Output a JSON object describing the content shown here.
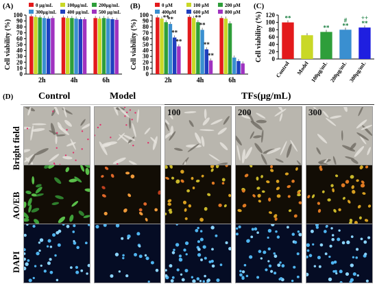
{
  "panels": {
    "a": "(A)",
    "b": "(B)",
    "c": "(C)",
    "d": "(D)"
  },
  "chart_data": [
    {
      "type": "bar",
      "panel": "(A)",
      "ylabel": "Cell viability (%)",
      "ylim": [
        0,
        100
      ],
      "yticks": [
        0,
        10,
        20,
        30,
        40,
        50,
        60,
        70,
        80,
        90,
        100
      ],
      "categories": [
        "2h",
        "4h",
        "6h"
      ],
      "legend": "top",
      "series": [
        {
          "name": "0 μg/mL",
          "color": "#e31a1c",
          "values": [
            98,
            96,
            95
          ]
        },
        {
          "name": "100μg/mL",
          "color": "#c9d827",
          "values": [
            97,
            95,
            94
          ]
        },
        {
          "name": "200μg/mL",
          "color": "#2e9e3a",
          "values": [
            96,
            95,
            95
          ]
        },
        {
          "name": "300μg/mL",
          "color": "#3a8fd0",
          "values": [
            95,
            94,
            94
          ]
        },
        {
          "name": "400 μg/mL",
          "color": "#1f3fbf",
          "values": [
            94,
            93,
            93
          ]
        },
        {
          "name": "500 μg/mL",
          "color": "#a033c0",
          "values": [
            95,
            93,
            92
          ]
        }
      ],
      "annotations": []
    },
    {
      "type": "bar",
      "panel": "(B)",
      "ylabel": "Cell viability (%)",
      "ylim": [
        0,
        100
      ],
      "yticks": [
        0,
        10,
        20,
        30,
        40,
        50,
        60,
        70,
        80,
        90,
        100
      ],
      "categories": [
        "2h",
        "4h",
        "6h"
      ],
      "legend": "top",
      "series": [
        {
          "name": "0   μM",
          "color": "#e31a1c",
          "values": [
            96,
            97,
            95
          ]
        },
        {
          "name": "100  μM",
          "color": "#c9d827",
          "values": [
            94,
            95,
            94
          ]
        },
        {
          "name": "200  μM",
          "color": "#2e9e3a",
          "values": [
            88,
            88,
            86
          ]
        },
        {
          "name": "400μM",
          "color": "#3a8fd0",
          "values": [
            85,
            75,
            28
          ]
        },
        {
          "name": "600  μM",
          "color": "#1f3fbf",
          "values": [
            62,
            42,
            22
          ]
        },
        {
          "name": "800  μM",
          "color": "#a033c0",
          "values": [
            47,
            23,
            18
          ]
        }
      ],
      "annotations": [
        "**",
        "**",
        "**",
        "**",
        "**",
        "**",
        "**",
        "**"
      ]
    },
    {
      "type": "bar",
      "panel": "(C)",
      "ylabel": "Cell viability (%)",
      "ylim": [
        0,
        120
      ],
      "yticks": [
        0,
        20,
        40,
        60,
        80,
        100,
        120
      ],
      "categories": [
        "Control",
        "Model",
        "100μg/mL",
        "200μg/mL",
        "300μg/mL"
      ],
      "colors": [
        "#e31a1c",
        "#c9d827",
        "#2e9e3a",
        "#3a8fd0",
        "#1f1fe0"
      ],
      "values": [
        100,
        65,
        74,
        80,
        86
      ],
      "annotations": [
        "**",
        "",
        "**",
        "**",
        "**"
      ],
      "annotations_top": [
        "",
        "",
        "",
        "#",
        "++"
      ]
    }
  ],
  "micrographs": {
    "columns": [
      "Control",
      "Model",
      "100",
      "200",
      "300"
    ],
    "group_title": "TFs(μg/mL)",
    "rows": [
      "Bright field",
      "AO/EB",
      "DAPI"
    ]
  }
}
